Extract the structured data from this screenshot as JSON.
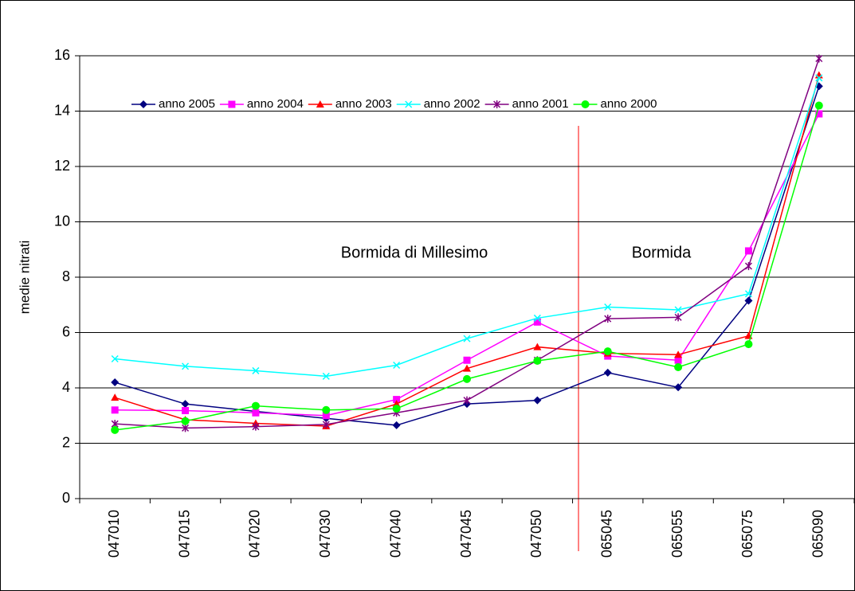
{
  "chart_data": {
    "type": "line",
    "y_label": "medie nitrati",
    "annotations": [
      "Bormida di Millesimo",
      "Bormida"
    ],
    "categories": [
      "047010",
      "047015",
      "047020",
      "047030",
      "047040",
      "047045",
      "047050",
      "065045",
      "065055",
      "065075",
      "065090"
    ],
    "ylim": [
      0,
      16
    ],
    "yticks": [
      0,
      2,
      4,
      6,
      8,
      10,
      12,
      14,
      16
    ],
    "grid": true,
    "legend": "top",
    "series": [
      {
        "name": "anno 2005",
        "color": "#000080",
        "marker": "diamond",
        "values": [
          4.2,
          3.42,
          3.15,
          2.9,
          2.65,
          3.42,
          3.55,
          4.55,
          4.02,
          7.15,
          14.9
        ]
      },
      {
        "name": "anno 2004",
        "color": "#ff00ff",
        "marker": "square",
        "values": [
          3.2,
          3.18,
          3.1,
          3.0,
          3.58,
          5.0,
          6.38,
          5.15,
          5.0,
          8.95,
          13.9
        ]
      },
      {
        "name": "anno 2003",
        "color": "#ff0000",
        "marker": "triangle",
        "values": [
          3.65,
          2.85,
          2.72,
          2.62,
          3.42,
          4.7,
          5.48,
          5.25,
          5.2,
          5.88,
          15.3
        ]
      },
      {
        "name": "anno 2002",
        "color": "#00ffff",
        "marker": "x",
        "values": [
          5.05,
          4.78,
          4.62,
          4.42,
          4.82,
          5.78,
          6.52,
          6.92,
          6.82,
          7.4,
          15.2
        ]
      },
      {
        "name": "anno 2001",
        "color": "#800080",
        "marker": "star",
        "values": [
          2.7,
          2.55,
          2.6,
          2.68,
          3.1,
          3.55,
          5.0,
          6.5,
          6.55,
          8.4,
          15.9
        ]
      },
      {
        "name": "anno 2000",
        "color": "#00ff00",
        "marker": "circle",
        "values": [
          2.48,
          2.8,
          3.35,
          3.2,
          3.25,
          4.32,
          4.98,
          5.32,
          4.75,
          5.58,
          14.2
        ]
      }
    ]
  }
}
